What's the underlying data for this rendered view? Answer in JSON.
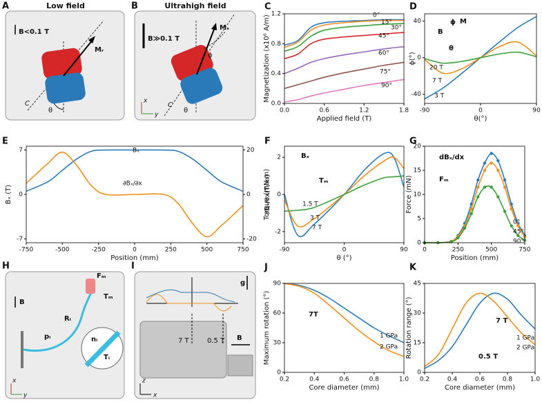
{
  "chart_data": [
    {
      "type": "line",
      "panel": "C",
      "x_label": "Applied field (T)",
      "y_label": "Magnetization (x10⁶ A/m)",
      "xlim": [
        0,
        1.8
      ],
      "xticks": [
        {
          "value": 0,
          "label": "0.0"
        },
        0.6,
        1.2,
        1.8
      ],
      "ylim": [
        0,
        1.2
      ],
      "yticks": [
        {
          "value": 0,
          "label": "0.0"
        },
        0.4,
        0.8,
        1.2
      ],
      "x": [
        0,
        0.2,
        0.4,
        0.6,
        0.9,
        1.2,
        1.5,
        1.8
      ],
      "series": [
        {
          "name": "0°",
          "color": "#2a7ab9",
          "values": [
            0.78,
            0.84,
            1.02,
            1.08,
            1.1,
            1.11,
            1.12,
            1.12
          ]
        },
        {
          "name": "15°",
          "color": "#f28e1c",
          "values": [
            0.75,
            0.82,
            0.98,
            1.05,
            1.08,
            1.1,
            1.11,
            1.11
          ]
        },
        {
          "name": "30°",
          "color": "#3a9e3a",
          "values": [
            0.7,
            0.76,
            0.9,
            0.98,
            1.02,
            1.04,
            1.06,
            1.07
          ]
        },
        {
          "name": "45°",
          "color": "#d62728",
          "values": [
            0.6,
            0.66,
            0.8,
            0.86,
            0.89,
            0.91,
            0.93,
            0.95
          ]
        },
        {
          "name": "60°",
          "color": "#9467bd",
          "values": [
            0.4,
            0.47,
            0.55,
            0.6,
            0.65,
            0.69,
            0.73,
            0.76
          ]
        },
        {
          "name": "75°",
          "color": "#8c564b",
          "values": [
            0.2,
            0.25,
            0.3,
            0.35,
            0.41,
            0.46,
            0.51,
            0.55
          ]
        },
        {
          "name": "90°",
          "color": "#e377c2",
          "values": [
            0.02,
            0.05,
            0.1,
            0.14,
            0.19,
            0.24,
            0.28,
            0.32
          ]
        }
      ]
    },
    {
      "type": "line",
      "panel": "D",
      "x_label": "θ(°)",
      "y_label": "ϕ(°)",
      "xlim": [
        -90,
        90
      ],
      "xticks": [
        -90,
        0,
        90
      ],
      "ylim": [
        -50,
        48
      ],
      "yticks": [
        -40,
        0,
        40
      ],
      "x": [
        -90,
        -60,
        -30,
        0,
        30,
        60,
        90
      ],
      "annotations": [
        "B",
        "M",
        "ϕ",
        "θ"
      ],
      "series": [
        {
          "name": "3 T",
          "color": "#2a7ab9",
          "values": [
            -45,
            -33,
            -17,
            0,
            17,
            33,
            45
          ]
        },
        {
          "name": "7 T",
          "color": "#f28e1c",
          "values": [
            -2,
            -17,
            -12,
            0,
            12,
            17,
            2
          ]
        },
        {
          "name": "20 T",
          "color": "#3a9e3a",
          "values": [
            -1,
            -6,
            -4,
            0,
            4,
            6,
            1
          ]
        }
      ]
    },
    {
      "type": "line",
      "panel": "E",
      "x_label": "Position (mm)",
      "y_label": "Bₓ (T)",
      "y2_label": "∂Bₓ/∂x(T/m)",
      "xlim": [
        -750,
        750
      ],
      "xticks": [
        -750,
        -500,
        -250,
        0,
        250,
        500,
        750
      ],
      "ylim": [
        -7.6,
        7.6
      ],
      "yticks": [
        -7,
        0,
        7
      ],
      "y2lim": [
        -21.7,
        21.7
      ],
      "y2ticks": [
        -20,
        0,
        20
      ],
      "x": [
        -750,
        -600,
        -500,
        -400,
        -300,
        -200,
        0,
        200,
        300,
        400,
        500,
        600,
        750
      ],
      "series": [
        {
          "name": "Bₓ",
          "color": "#2a7ab9",
          "values": [
            0.5,
            2,
            3.8,
            5.6,
            6.8,
            7,
            7,
            7,
            6.8,
            5.6,
            3.8,
            2,
            0.5
          ]
        },
        {
          "name": "∂Bₓ/∂x",
          "color": "#f28e1c",
          "axis": "y2",
          "values": [
            5,
            14,
            19,
            13,
            4,
            0,
            0,
            0,
            -4,
            -13,
            -19,
            -14,
            -5
          ]
        }
      ]
    },
    {
      "type": "line",
      "panel": "F",
      "x_label": "θ (°)",
      "y_label": "Torque (mN.m)",
      "xlim": [
        -90,
        90
      ],
      "xticks": [
        -90,
        0,
        90
      ],
      "ylim": [
        -2.6,
        2.6
      ],
      "yticks": [
        -2,
        0,
        2
      ],
      "x": [
        -90,
        -70,
        -45,
        0,
        30,
        60,
        75,
        90
      ],
      "annotations": [
        "Bₓ",
        "Tₘ"
      ],
      "series": [
        {
          "name": "7 T",
          "color": "#2a7ab9",
          "values": [
            0,
            -2.2,
            -1.6,
            0,
            1.3,
            2.2,
            2.0,
            0.4
          ]
        },
        {
          "name": "3 T",
          "color": "#f28e1c",
          "values": [
            -0.3,
            -1.7,
            -1.3,
            0,
            1.0,
            1.8,
            2.0,
            1.4
          ]
        },
        {
          "name": "1.5 T",
          "color": "#3a9e3a",
          "values": [
            -0.9,
            -0.85,
            -0.7,
            0,
            0.5,
            0.9,
            0.95,
            1.0
          ]
        }
      ]
    },
    {
      "type": "line",
      "panel": "G",
      "markers": true,
      "x_label": "Position (mm)",
      "y_label": "Force (mN)",
      "xlim": [
        0,
        750
      ],
      "xticks": [
        0,
        250,
        500,
        750
      ],
      "ylim": [
        0,
        20
      ],
      "yticks": [
        0,
        5,
        10,
        15,
        20
      ],
      "x": [
        0,
        100,
        200,
        250,
        300,
        350,
        400,
        450,
        500,
        550,
        600,
        650,
        700,
        750
      ],
      "annotations": [
        "dBₓ/dx",
        "Fₘ"
      ],
      "series": [
        {
          "name": "0°",
          "color": "#2a7ab9",
          "values": [
            0,
            0,
            0.3,
            1.5,
            4,
            8,
            13,
            16.5,
            18.5,
            17,
            13,
            8,
            4,
            1.5
          ]
        },
        {
          "name": "45°",
          "color": "#f28e1c",
          "values": [
            0,
            0,
            0.3,
            1.3,
            3.5,
            7,
            11.5,
            15,
            16.5,
            15,
            11.5,
            7,
            3.5,
            1.2
          ]
        },
        {
          "name": "90°",
          "color": "#3a9e3a",
          "values": [
            0,
            0,
            0.2,
            1,
            3,
            6,
            9.5,
            11.5,
            11.5,
            9.5,
            6.5,
            3.5,
            1.5,
            0.5
          ]
        }
      ]
    },
    {
      "type": "line",
      "panel": "J",
      "x_label": "Core diameter (mm)",
      "y_label": "Maximum rotation (°)",
      "xlim": [
        0.2,
        1.0
      ],
      "xticks": [
        0.2,
        0.4,
        0.6,
        0.8,
        {
          "value": 1.0,
          "label": "1.0"
        }
      ],
      "ylim": [
        0,
        90
      ],
      "yticks": [
        0,
        30,
        60,
        90
      ],
      "x": [
        0.2,
        0.3,
        0.4,
        0.5,
        0.6,
        0.7,
        0.8,
        0.9,
        1.0
      ],
      "annotations": [
        "7T"
      ],
      "series": [
        {
          "name": "1 GPa",
          "color": "#2a7ab9",
          "values": [
            90,
            88,
            83,
            75,
            65,
            55,
            45,
            37,
            30
          ]
        },
        {
          "name": "2 GPa",
          "color": "#f28e1c",
          "values": [
            90,
            87,
            80,
            68,
            55,
            42,
            31,
            22,
            16
          ]
        }
      ]
    },
    {
      "type": "line",
      "panel": "K",
      "x_label": "Core diameter (mm)",
      "y_label": "Rotation range (°)",
      "xlim": [
        0.2,
        1.0
      ],
      "xticks": [
        0.2,
        0.4,
        0.6,
        0.8,
        {
          "value": 1.0,
          "label": "1.0"
        }
      ],
      "ylim": [
        0,
        45
      ],
      "yticks": [
        0,
        15,
        30,
        45
      ],
      "x": [
        0.2,
        0.3,
        0.4,
        0.5,
        0.6,
        0.7,
        0.8,
        0.9,
        1.0
      ],
      "annotations": [
        "7 T",
        "0.5 T"
      ],
      "series": [
        {
          "name": "1 GPa",
          "color": "#2a7ab9",
          "values": [
            2,
            6,
            13,
            24,
            35,
            40,
            37,
            29,
            22
          ]
        },
        {
          "name": "2 GPa",
          "color": "#f28e1c",
          "values": [
            3,
            9,
            22,
            35,
            40,
            36,
            28,
            20,
            14
          ]
        }
      ]
    }
  ],
  "diagrams": [
    {
      "panel": "A",
      "title": "Low field",
      "labels": [
        "B<0.1 T",
        "Mᵣ",
        "C",
        "θ"
      ]
    },
    {
      "panel": "B",
      "title": "Ultrahigh field",
      "labels": [
        "B≫0.1 T",
        "Mₛ",
        "ϕ",
        "C",
        "θ",
        "x",
        "y"
      ]
    },
    {
      "panel": "H",
      "labels": [
        "B",
        "Fₘ",
        "Tₘ",
        "pᵢ",
        "Rᵢ",
        "nᵢ",
        "Tᵢ",
        "x",
        "y"
      ]
    },
    {
      "panel": "I",
      "labels": [
        "g",
        "7 T",
        "0.5 T",
        "B",
        "z",
        "x"
      ]
    }
  ]
}
